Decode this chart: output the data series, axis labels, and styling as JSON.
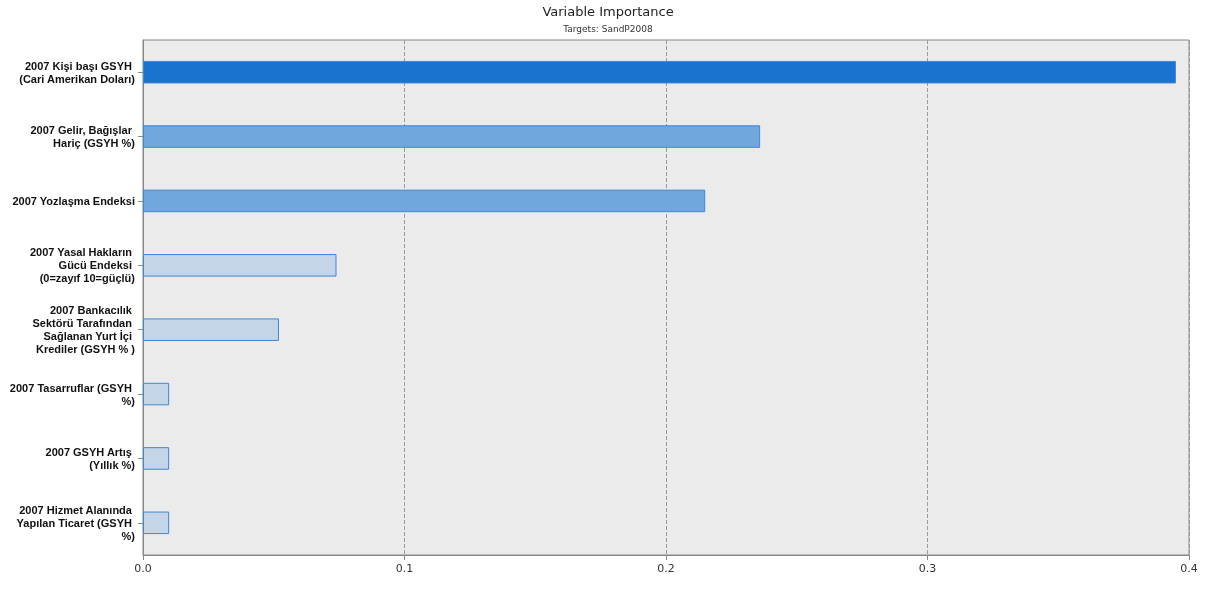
{
  "chart_data": {
    "type": "bar",
    "orientation": "horizontal",
    "title": "Variable Importance",
    "subtitle": "Targets: SandP2008",
    "categories": [
      "2007 Kişi başı GSYH (Cari Amerikan Doları)",
      "2007 Gelir, Bağışlar Hariç (GSYH %)",
      "2007 Yozlaşma Endeksi",
      "2007 Yasal Hakların Gücü Endeksi (0=zayıf 10=güçlü)",
      "2007 Bankacılık Sektörü Tarafından Sağlanan Yurt İçi Krediler (GSYH % )",
      "2007 Tasarruflar (GSYH %)",
      "2007 GSYH Artış (Yıllık %)",
      "2007 Hizmet Alanında Yapılan Ticaret (GSYH %)"
    ],
    "values": [
      0.395,
      0.236,
      0.215,
      0.074,
      0.052,
      0.01,
      0.01,
      0.01
    ],
    "colors": [
      "#1a73cf",
      "#72a7dd",
      "#72a7dd",
      "#c3d5e7",
      "#c3d5e7",
      "#c3d5e7",
      "#c3d5e7",
      "#c3d5e7"
    ],
    "xlim": [
      0,
      0.4
    ],
    "xticks": [
      {
        "value": 0,
        "label": "0.0"
      },
      0.1,
      0.2,
      0.3,
      0.4
    ],
    "grid": "x"
  }
}
